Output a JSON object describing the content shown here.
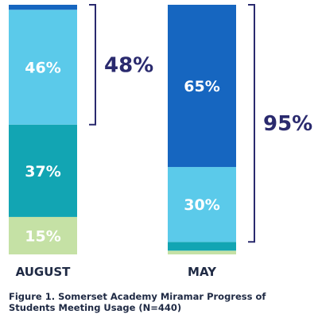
{
  "chart_data": {
    "type": "bar",
    "stacked": true,
    "categories": [
      "AUGUST",
      "MAY"
    ],
    "series": [
      {
        "values": [
          15,
          1.5
        ],
        "color": "#c5e1a5",
        "labels": [
          "15%",
          ""
        ]
      },
      {
        "values": [
          37,
          3.5
        ],
        "color": "#12a5b3",
        "labels": [
          "37%",
          ""
        ]
      },
      {
        "values": [
          46,
          30
        ],
        "color": "#5bcaea",
        "labels": [
          "46%",
          "30%"
        ]
      },
      {
        "values": [
          2,
          65
        ],
        "color": "#1666c0",
        "labels": [
          "",
          "65%"
        ]
      }
    ],
    "brackets": [
      {
        "category": "AUGUST",
        "label": "48%",
        "from": 52,
        "to": 100
      },
      {
        "category": "MAY",
        "label": "95%",
        "from": 5,
        "to": 100
      }
    ],
    "ylim": [
      0,
      100
    ],
    "xlabel": "",
    "ylabel": "",
    "grid": false,
    "legend": "none",
    "bracket_color": "#2a2a6e"
  },
  "caption": "Figure 1. Somerset Academy Miramar Progress of Students Meeting Usage (N=440)"
}
